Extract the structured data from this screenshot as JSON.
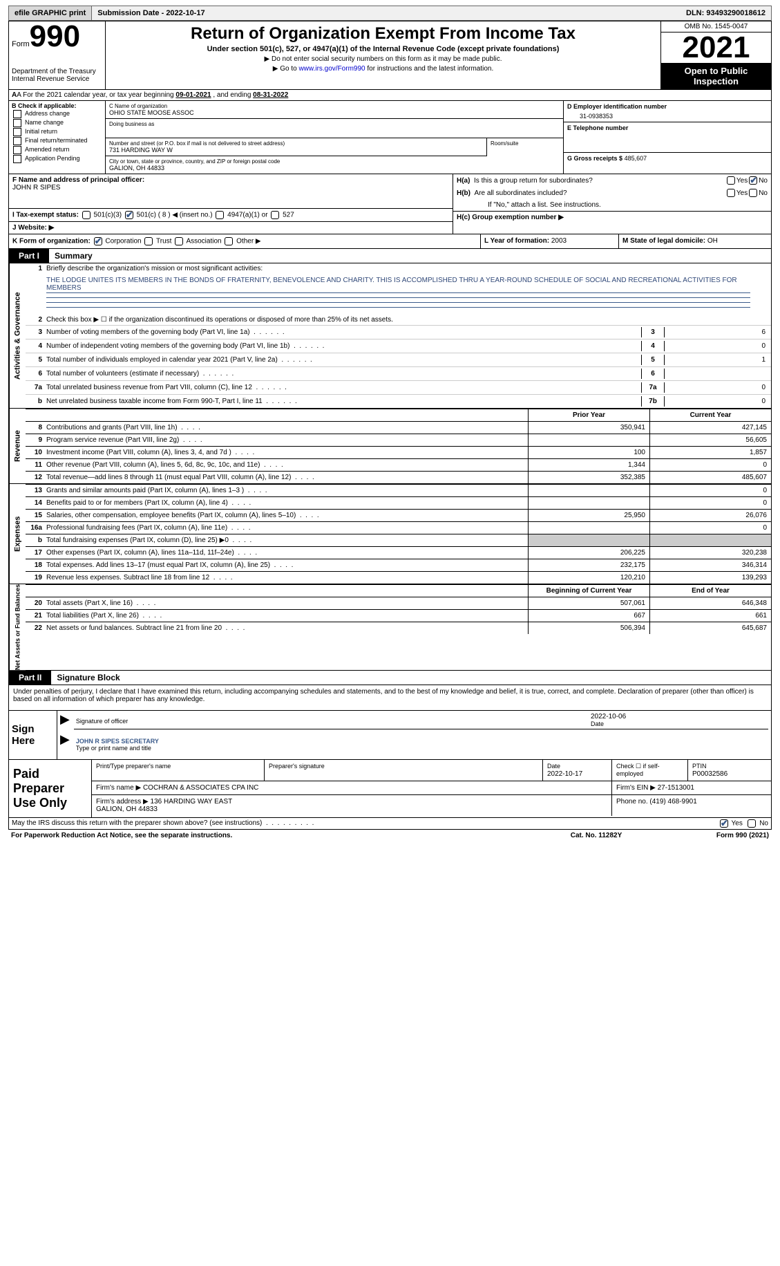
{
  "topbar": {
    "efile": "efile GRAPHIC print",
    "submission": "Submission Date - 2022-10-17",
    "dln_label": "DLN:",
    "dln": "93493290018612"
  },
  "header": {
    "form_word": "Form",
    "form_num": "990",
    "dept": "Department of the Treasury\nInternal Revenue Service",
    "title": "Return of Organization Exempt From Income Tax",
    "subtitle": "Under section 501(c), 527, or 4947(a)(1) of the Internal Revenue Code (except private foundations)",
    "instr1": "▶ Do not enter social security numbers on this form as it may be made public.",
    "instr2_pre": "▶ Go to ",
    "instr2_link": "www.irs.gov/Form990",
    "instr2_post": " for instructions and the latest information.",
    "omb": "OMB No. 1545-0047",
    "year": "2021",
    "inspect": "Open to Public Inspection"
  },
  "row_a": {
    "pre": "A For the 2021 calendar year, or tax year beginning ",
    "begin": "09-01-2021",
    "mid": " , and ending ",
    "end": "08-31-2022"
  },
  "block_b": {
    "label": "B Check if applicable:",
    "opts": [
      "Address change",
      "Name change",
      "Initial return",
      "Final return/terminated",
      "Amended return",
      "Application Pending"
    ]
  },
  "block_c": {
    "name_label": "C Name of organization",
    "name": "OHIO STATE MOOSE ASSOC",
    "dba_label": "Doing business as",
    "addr_label": "Number and street (or P.O. box if mail is not delivered to street address)",
    "addr": "731 HARDING WAY W",
    "room_label": "Room/suite",
    "city_label": "City or town, state or province, country, and ZIP or foreign postal code",
    "city": "GALION, OH  44833"
  },
  "block_d": {
    "ein_label": "D Employer identification number",
    "ein": "31-0938353",
    "phone_label": "E Telephone number",
    "gross_label": "G Gross receipts $",
    "gross": "485,607"
  },
  "block_f": {
    "label": "F Name and address of principal officer:",
    "name": "JOHN R SIPES"
  },
  "block_h": {
    "ha": "H(a)  Is this a group return for subordinates?",
    "hb": "H(b)  Are all subordinates included?",
    "hb_note": "If \"No,\" attach a list. See instructions.",
    "hc": "H(c)  Group exemption number ▶",
    "yes": "Yes",
    "no": "No"
  },
  "block_i": {
    "label": "I    Tax-exempt status:",
    "opt1": "501(c)(3)",
    "opt2": "501(c) ( 8 ) ◀ (insert no.)",
    "opt3": "4947(a)(1) or",
    "opt4": "527"
  },
  "block_j": {
    "label": "J   Website: ▶"
  },
  "row_k": {
    "label": "K Form of organization:",
    "opts": [
      "Corporation",
      "Trust",
      "Association",
      "Other ▶"
    ]
  },
  "row_l": {
    "label": "L Year of formation:",
    "val": "2003"
  },
  "row_m": {
    "label": "M State of legal domicile:",
    "val": "OH"
  },
  "part1": {
    "tag": "Part I",
    "title": "Summary"
  },
  "summary": {
    "q1": "Briefly describe the organization's mission or most significant activities:",
    "mission": "THE LODGE UNITES ITS MEMBERS IN THE BONDS OF FRATERNITY, BENEVOLENCE AND CHARITY. THIS IS ACCOMPLISHED THRU A YEAR-ROUND SCHEDULE OF SOCIAL AND RECREATIONAL ACTIVITIES FOR MEMBERS",
    "q2": "Check this box ▶ ☐ if the organization discontinued its operations or disposed of more than 25% of its net assets.",
    "lines": [
      {
        "n": "3",
        "t": "Number of voting members of the governing body (Part VI, line 1a)",
        "box": "3",
        "v": "6"
      },
      {
        "n": "4",
        "t": "Number of independent voting members of the governing body (Part VI, line 1b)",
        "box": "4",
        "v": "0"
      },
      {
        "n": "5",
        "t": "Total number of individuals employed in calendar year 2021 (Part V, line 2a)",
        "box": "5",
        "v": "1"
      },
      {
        "n": "6",
        "t": "Total number of volunteers (estimate if necessary)",
        "box": "6",
        "v": ""
      },
      {
        "n": "7a",
        "t": "Total unrelated business revenue from Part VIII, column (C), line 12",
        "box": "7a",
        "v": "0"
      },
      {
        "n": "b",
        "t": "Net unrelated business taxable income from Form 990-T, Part I, line 11",
        "box": "7b",
        "v": "0"
      }
    ]
  },
  "cols": {
    "prior": "Prior Year",
    "current": "Current Year",
    "begin": "Beginning of Current Year",
    "end": "End of Year"
  },
  "revenue": [
    {
      "n": "8",
      "t": "Contributions and grants (Part VIII, line 1h)",
      "p": "350,941",
      "c": "427,145"
    },
    {
      "n": "9",
      "t": "Program service revenue (Part VIII, line 2g)",
      "p": "",
      "c": "56,605"
    },
    {
      "n": "10",
      "t": "Investment income (Part VIII, column (A), lines 3, 4, and 7d )",
      "p": "100",
      "c": "1,857"
    },
    {
      "n": "11",
      "t": "Other revenue (Part VIII, column (A), lines 5, 6d, 8c, 9c, 10c, and 11e)",
      "p": "1,344",
      "c": "0"
    },
    {
      "n": "12",
      "t": "Total revenue—add lines 8 through 11 (must equal Part VIII, column (A), line 12)",
      "p": "352,385",
      "c": "485,607"
    }
  ],
  "expenses": [
    {
      "n": "13",
      "t": "Grants and similar amounts paid (Part IX, column (A), lines 1–3 )",
      "p": "",
      "c": "0"
    },
    {
      "n": "14",
      "t": "Benefits paid to or for members (Part IX, column (A), line 4)",
      "p": "",
      "c": "0"
    },
    {
      "n": "15",
      "t": "Salaries, other compensation, employee benefits (Part IX, column (A), lines 5–10)",
      "p": "25,950",
      "c": "26,076"
    },
    {
      "n": "16a",
      "t": "Professional fundraising fees (Part IX, column (A), line 11e)",
      "p": "",
      "c": "0"
    },
    {
      "n": "b",
      "t": "Total fundraising expenses (Part IX, column (D), line 25) ▶0",
      "p": "shade",
      "c": "shade"
    },
    {
      "n": "17",
      "t": "Other expenses (Part IX, column (A), lines 11a–11d, 11f–24e)",
      "p": "206,225",
      "c": "320,238"
    },
    {
      "n": "18",
      "t": "Total expenses. Add lines 13–17 (must equal Part IX, column (A), line 25)",
      "p": "232,175",
      "c": "346,314"
    },
    {
      "n": "19",
      "t": "Revenue less expenses. Subtract line 18 from line 12",
      "p": "120,210",
      "c": "139,293"
    }
  ],
  "netassets": [
    {
      "n": "20",
      "t": "Total assets (Part X, line 16)",
      "p": "507,061",
      "c": "646,348"
    },
    {
      "n": "21",
      "t": "Total liabilities (Part X, line 26)",
      "p": "667",
      "c": "661"
    },
    {
      "n": "22",
      "t": "Net assets or fund balances. Subtract line 21 from line 20",
      "p": "506,394",
      "c": "645,687"
    }
  ],
  "vtabs": {
    "act": "Activities & Governance",
    "rev": "Revenue",
    "exp": "Expenses",
    "net": "Net Assets or\nFund Balances"
  },
  "part2": {
    "tag": "Part II",
    "title": "Signature Block"
  },
  "sig": {
    "intro": "Under penalties of perjury, I declare that I have examined this return, including accompanying schedules and statements, and to the best of my knowledge and belief, it is true, correct, and complete. Declaration of preparer (other than officer) is based on all information of which preparer has any knowledge.",
    "here": "Sign Here",
    "sig_label": "Signature of officer",
    "date_label": "Date",
    "date": "2022-10-06",
    "name": "JOHN R SIPES SECRETARY",
    "name_label": "Type or print name and title"
  },
  "paid": {
    "left": "Paid Preparer Use Only",
    "h1": "Print/Type preparer's name",
    "h2": "Preparer's signature",
    "h3": "Date",
    "h3v": "2022-10-17",
    "h4": "Check ☐ if self-employed",
    "h5": "PTIN",
    "h5v": "P00032586",
    "firm_label": "Firm's name     ▶",
    "firm": "COCHRAN & ASSOCIATES CPA INC",
    "ein_label": "Firm's EIN ▶",
    "ein": "27-1513001",
    "addr_label": "Firm's address ▶",
    "addr": "136 HARDING WAY EAST\nGALION, OH  44833",
    "phone_label": "Phone no.",
    "phone": "(419) 468-9901"
  },
  "foot": {
    "may": "May the IRS discuss this return with the preparer shown above? (see instructions)",
    "yes": "Yes",
    "no": "No",
    "pra": "For Paperwork Reduction Act Notice, see the separate instructions.",
    "cat": "Cat. No. 11282Y",
    "form": "Form 990 (2021)"
  }
}
